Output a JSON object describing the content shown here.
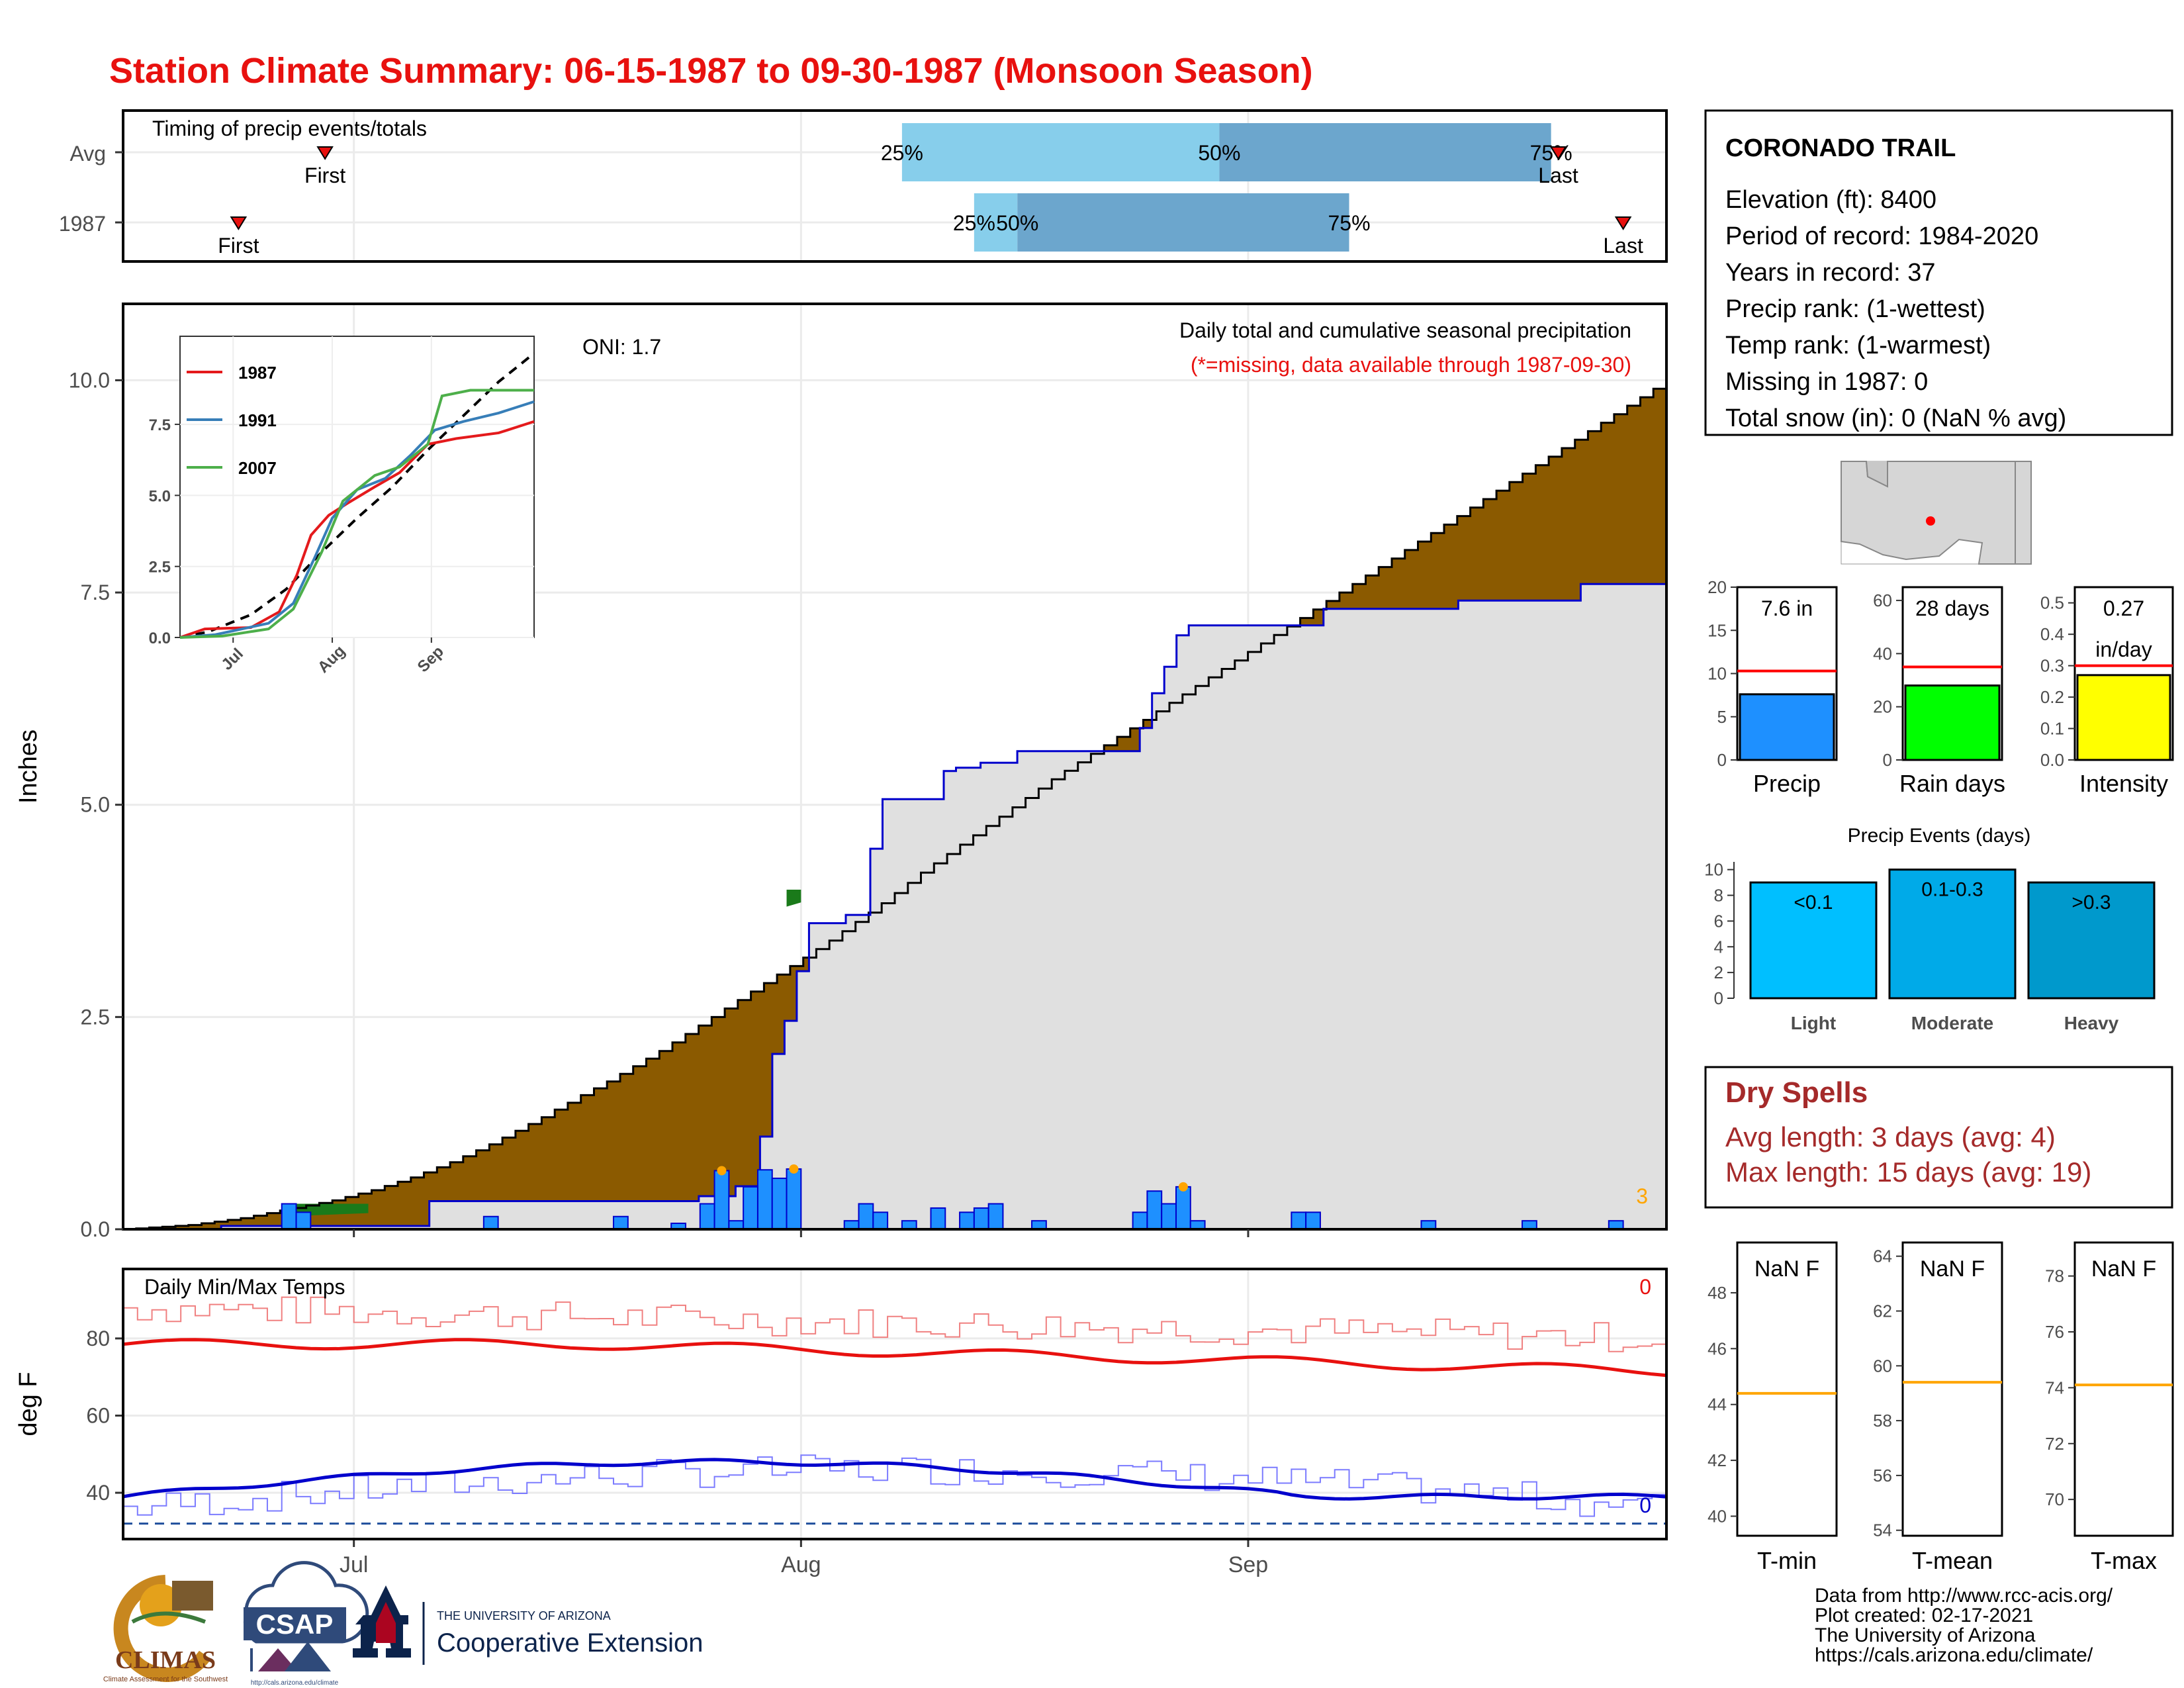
{
  "header": {
    "title": "Station Climate Summary: 06-15-1987 to 09-30-1987 (Monsoon Season)"
  },
  "timing": {
    "label": "Timing of precip events/totals",
    "rows": [
      {
        "name": "Avg",
        "first": "First",
        "last": "Last",
        "p25": "25%",
        "p50": "50%",
        "p75": "75%",
        "first_day": 14,
        "p25_day": 54,
        "p50_day": 76,
        "p75_day": 99,
        "last_day": 99.5
      },
      {
        "name": "1987",
        "first": "First",
        "last": "Last",
        "p25": "25%",
        "p50": "50%",
        "p75": "75%",
        "first_day": 8,
        "p25_day": 59,
        "p50_day": 62,
        "p75_day": 85,
        "last_day": 104
      }
    ]
  },
  "station": {
    "name": "CORONADO TRAIL",
    "lines": [
      "Elevation (ft): 8400",
      "Period of record: 1984-2020",
      "Years in record: 37",
      "Precip rank:  (1-wettest)",
      "Temp rank:  (1-warmest)",
      "Missing in 1987: 0",
      "Total snow (in): 0 (NaN % avg)"
    ]
  },
  "mini_bars": [
    {
      "label": "Precip",
      "value_text": "7.6 in",
      "value": 7.6,
      "avg": 10.3,
      "ymax": 20,
      "ticks": [
        "0",
        "5",
        "10",
        "15",
        "20"
      ],
      "tick_vals": [
        0,
        5,
        10,
        15,
        20
      ],
      "color": "#1e90ff"
    },
    {
      "label": "Rain days",
      "value_text": "28 days",
      "value": 28,
      "avg": 35,
      "ymax": 65,
      "ticks": [
        "0",
        "20",
        "40",
        "60"
      ],
      "tick_vals": [
        0,
        20,
        40,
        60
      ],
      "color": "#00ff00"
    },
    {
      "label": "Intensity",
      "value_text": "0.27",
      "value_text2": "in/day",
      "value": 0.27,
      "avg": 0.3,
      "ymax": 0.55,
      "ticks": [
        "0.0",
        "0.1",
        "0.2",
        "0.3",
        "0.4",
        "0.5"
      ],
      "tick_vals": [
        0,
        0.1,
        0.2,
        0.3,
        0.4,
        0.5
      ],
      "color": "#ffff00"
    }
  ],
  "events": {
    "title": "Precip Events (days)",
    "ticks": [
      "0",
      "2",
      "4",
      "6",
      "8",
      "10"
    ],
    "bars": [
      {
        "label": "Light",
        "inner": "<0.1",
        "value": 9,
        "color": "#00bfff"
      },
      {
        "label": "Moderate",
        "inner": "0.1-0.3",
        "value": 10,
        "color": "#00aae8"
      },
      {
        "label": "Heavy",
        "inner": ">0.3",
        "value": 9,
        "color": "#0099cc"
      }
    ]
  },
  "dry_spells": {
    "title": "Dry Spells",
    "avg_length": "Avg length: 3 days (avg: 4)",
    "max_length": "Max length: 15 days (avg: 19)"
  },
  "temp_boxes": [
    {
      "label": "T-min",
      "value_text": "NaN F",
      "ticks": [
        "40",
        "42",
        "44",
        "46",
        "48"
      ],
      "tick_vals": [
        40,
        42,
        44,
        46,
        48
      ],
      "ymin": 39.3,
      "ymax": 49.8,
      "avg": 44.4
    },
    {
      "label": "T-mean",
      "value_text": "NaN F",
      "ticks": [
        "54",
        "56",
        "58",
        "60",
        "62",
        "64"
      ],
      "tick_vals": [
        54,
        56,
        58,
        60,
        62,
        64
      ],
      "ymin": 53.8,
      "ymax": 64.5,
      "avg": 59.4
    },
    {
      "label": "T-max",
      "value_text": "NaN F",
      "ticks": [
        "70",
        "72",
        "74",
        "76",
        "78"
      ],
      "tick_vals": [
        70,
        72,
        74,
        76,
        78
      ],
      "ymin": 68.7,
      "ymax": 79.2,
      "avg": 74.1
    }
  ],
  "footer": {
    "credits": [
      "Data from http://www.rcc-acis.org/",
      "Plot created: 02-17-2021",
      "The University of Arizona",
      "https://cals.arizona.edu/climate/"
    ],
    "logos": {
      "climas": "CLIMAS",
      "climas_sub": "Climate Assessment for the Southwest",
      "csap": "CSAP",
      "csap_url": "http://cals.arizona.edu/climate",
      "ua_top": "THE UNIVERSITY OF ARIZONA",
      "ua_bottom": "Cooperative Extension"
    }
  },
  "chart_data": [
    {
      "type": "area",
      "id": "precip_main",
      "title": "Daily total and cumulative seasonal precipitation",
      "subtitle": "(*=missing, data available through 1987-09-30)",
      "ylabel": "Inches",
      "annotation": "ONI: 1.7",
      "corner_label": "3",
      "x_ticks": [
        "Jul",
        "Aug",
        "Sep"
      ],
      "x_tick_days": [
        16,
        47,
        78
      ],
      "y_ticks": [
        "0.0",
        "2.5",
        "5.0",
        "7.5",
        "10.0"
      ],
      "y_tick_vals": [
        0,
        2.5,
        5,
        7.5,
        10
      ],
      "xlim_days": [
        0,
        107
      ],
      "ylim": [
        0,
        10.9
      ],
      "series": [
        {
          "name": "",
          "kind": "avg_cumulative",
          "values": [
            0.0,
            0.01,
            0.02,
            0.03,
            0.04,
            0.05,
            0.07,
            0.09,
            0.11,
            0.13,
            0.16,
            0.19,
            0.22,
            0.25,
            0.28,
            0.31,
            0.34,
            0.38,
            0.42,
            0.46,
            0.51,
            0.56,
            0.61,
            0.67,
            0.73,
            0.79,
            0.86,
            0.93,
            1.0,
            1.08,
            1.16,
            1.24,
            1.32,
            1.41,
            1.49,
            1.58,
            1.66,
            1.74,
            1.83,
            1.92,
            2.01,
            2.1,
            2.2,
            2.3,
            2.4,
            2.5,
            2.6,
            2.7,
            2.8,
            2.9,
            3.0,
            3.1,
            3.2,
            3.3,
            3.4,
            3.51,
            3.62,
            3.73,
            3.84,
            3.96,
            4.08,
            4.2,
            4.31,
            4.42,
            4.53,
            4.64,
            4.75,
            4.86,
            4.97,
            5.08,
            5.19,
            5.3,
            5.4,
            5.5,
            5.6,
            5.7,
            5.8,
            5.9,
            6.0,
            6.1,
            6.2,
            6.3,
            6.4,
            6.5,
            6.6,
            6.7,
            6.8,
            6.9,
            7.0,
            7.1,
            7.2,
            7.3,
            7.4,
            7.5,
            7.6,
            7.7,
            7.8,
            7.9,
            8.0,
            8.1,
            8.2,
            8.3,
            8.4,
            8.5,
            8.6,
            8.7,
            8.8,
            8.9,
            9.0,
            9.1,
            9.2,
            9.3,
            9.4,
            9.5,
            9.6,
            9.7,
            9.8,
            9.9,
            10.0
          ]
        },
        {
          "name": "",
          "kind": "cumulative_1987",
          "daily": [
            0,
            0,
            0,
            0,
            0,
            0,
            0,
            0,
            0.02,
            0,
            0,
            0,
            0,
            0,
            0,
            0,
            0,
            0,
            0,
            0,
            0,
            0,
            0,
            0,
            0,
            0.15,
            0,
            0,
            0,
            0,
            0,
            0,
            0,
            0,
            0,
            0,
            0,
            0,
            0,
            0,
            0,
            0,
            0,
            0,
            0,
            0,
            0,
            0.03,
            0,
            0,
            0.06,
            0,
            0.3,
            0.5,
            0.2,
            0.3,
            0.29,
            0,
            0,
            0.05,
            0,
            0.4,
            0.3,
            0,
            0,
            0,
            0,
            0.17,
            0.02,
            0,
            0.03,
            0,
            0,
            0.07,
            0,
            0,
            0,
            0,
            0,
            0,
            0,
            0,
            0,
            0.14,
            0.21,
            0.16,
            0.19,
            0.06,
            0,
            0,
            0,
            0,
            0,
            0,
            0,
            0,
            0,
            0,
            0.1,
            0,
            0,
            0,
            0,
            0,
            0,
            0,
            0,
            0,
            0,
            0.05,
            0,
            0,
            0,
            0,
            0,
            0,
            0,
            0,
            0,
            0.1,
            0,
            0,
            0,
            0,
            0,
            0,
            0
          ]
        },
        {
          "name": "",
          "kind": "temps",
          "note": "Daily Min/Max Temps"
        }
      ],
      "daily_bars": [
        {
          "day": 11,
          "value": 0.3
        },
        {
          "day": 12,
          "value": 0.2
        },
        {
          "day": 25,
          "value": 0.15
        },
        {
          "day": 34,
          "value": 0.15
        },
        {
          "day": 38,
          "value": 0.07
        },
        {
          "day": 40,
          "value": 0.3
        },
        {
          "day": 41,
          "value": 0.69,
          "star": true
        },
        {
          "day": 42,
          "value": 0.1
        },
        {
          "day": 43,
          "value": 0.5
        },
        {
          "day": 44,
          "value": 0.7
        },
        {
          "day": 45,
          "value": 0.6
        },
        {
          "day": 46,
          "value": 0.71,
          "star": true
        },
        {
          "day": 50,
          "value": 0.1
        },
        {
          "day": 51,
          "value": 0.3
        },
        {
          "day": 52,
          "value": 0.2
        },
        {
          "day": 54,
          "value": 0.1
        },
        {
          "day": 56,
          "value": 0.25
        },
        {
          "day": 58,
          "value": 0.2
        },
        {
          "day": 59,
          "value": 0.25
        },
        {
          "day": 60,
          "value": 0.3
        },
        {
          "day": 63,
          "value": 0.1
        },
        {
          "day": 70,
          "value": 0.2
        },
        {
          "day": 71,
          "value": 0.45
        },
        {
          "day": 72,
          "value": 0.3
        },
        {
          "day": 73,
          "value": 0.5,
          "star": true
        },
        {
          "day": 74,
          "value": 0.1
        },
        {
          "day": 81,
          "value": 0.2
        },
        {
          "day": 82,
          "value": 0.2
        },
        {
          "day": 90,
          "value": 0.1
        },
        {
          "day": 97,
          "value": 0.1
        },
        {
          "day": 103,
          "value": 0.1
        }
      ]
    },
    {
      "type": "line",
      "id": "inset",
      "x_ticks": [
        "Jul",
        "Aug",
        "Sep"
      ],
      "y_ticks": [
        "0.0",
        "2.5",
        "5.0",
        "7.5"
      ],
      "y_tick_vals": [
        0,
        2.5,
        5,
        7.5
      ],
      "ylim": [
        0,
        10.6
      ],
      "series": [
        {
          "name": "1987",
          "color": "#e41a1c"
        },
        {
          "name": "1991",
          "color": "#377eb8"
        },
        {
          "name": "2007",
          "color": "#4daf4a"
        }
      ]
    },
    {
      "type": "line",
      "id": "temps",
      "title": "Daily Min/Max Temps",
      "ylabel": "deg F",
      "x_ticks": [
        "Jul",
        "Aug",
        "Sep"
      ],
      "y_ticks": [
        "40",
        "60",
        "80"
      ],
      "y_tick_vals": [
        40,
        60,
        80
      ],
      "ylim": [
        28,
        98
      ],
      "max_label": "0",
      "min_label": "0",
      "freeze_line": 32
    }
  ]
}
